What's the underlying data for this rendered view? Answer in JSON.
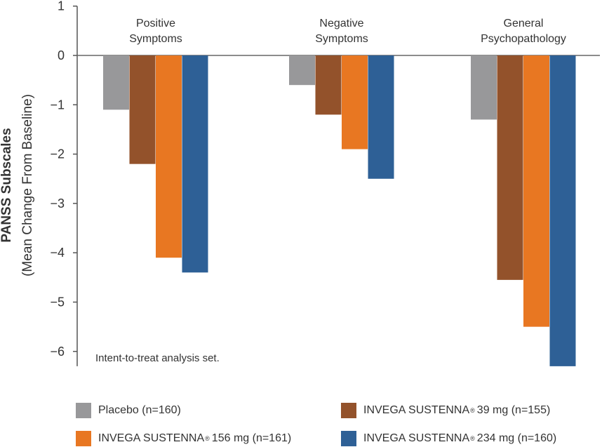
{
  "chart_data": {
    "type": "bar",
    "ylabel": "PANSS Subscales",
    "ylabel_sub": "(Mean Change From Baseline)",
    "ylim": [
      -6.3,
      1
    ],
    "yticks": [
      "1",
      "0",
      "−1",
      "−2",
      "−3",
      "−4",
      "−5",
      "−6"
    ],
    "ytick_values": [
      1,
      0,
      -1,
      -2,
      -3,
      -4,
      -5,
      -6
    ],
    "categories": [
      {
        "line1": "Positive",
        "line2": "Symptoms"
      },
      {
        "line1": "Negative",
        "line2": "Symptoms"
      },
      {
        "line1": "General",
        "line2": "Psychopathology"
      }
    ],
    "series": [
      {
        "name": "Placebo (n=160)",
        "color": "#98989a",
        "values": [
          -1.1,
          -0.6,
          -1.3
        ]
      },
      {
        "name_pre": "INVEGA SUSTENNA",
        "reg": "®",
        "name_post": "39 mg (n=155)",
        "color": "#93522b",
        "values": [
          -2.2,
          -1.2,
          -4.55
        ]
      },
      {
        "name_pre": "INVEGA SUSTENNA",
        "reg": "®",
        "name_post": "156 mg (n=161)",
        "color": "#e87722",
        "values": [
          -4.1,
          -1.9,
          -5.5
        ]
      },
      {
        "name_pre": "INVEGA SUSTENNA",
        "reg": "®",
        "name_post": "234 mg (n=160)",
        "color": "#2e6096",
        "values": [
          -4.4,
          -2.5,
          -6.3
        ]
      }
    ],
    "annotation": "Intent-to-treat analysis set.",
    "grid": false,
    "legend_position": "bottom"
  }
}
